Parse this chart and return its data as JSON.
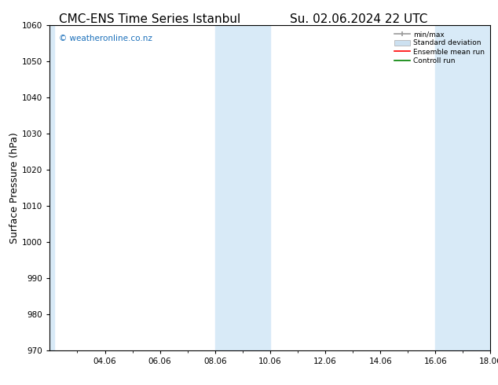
{
  "title_left": "CMC-ENS Time Series Istanbul",
  "title_right": "Su. 02.06.2024 22 UTC",
  "ylabel": "Surface Pressure (hPa)",
  "ylim": [
    970,
    1060
  ],
  "yticks": [
    970,
    980,
    990,
    1000,
    1010,
    1020,
    1030,
    1040,
    1050,
    1060
  ],
  "xtick_labels": [
    "04.06",
    "06.06",
    "08.06",
    "10.06",
    "12.06",
    "14.06",
    "16.06",
    "18.06"
  ],
  "xmin": 0.0,
  "xmax": 16.0,
  "xtick_positions": [
    2,
    4,
    6,
    8,
    10,
    12,
    14,
    16
  ],
  "shade_regions": [
    {
      "xstart": 6.0,
      "xend": 8.0
    },
    {
      "xstart": 14.0,
      "xend": 16.0
    }
  ],
  "left_shade": {
    "xstart": 0.0,
    "xend": 0.15
  },
  "shade_color": "#d8eaf7",
  "watermark": "© weatheronline.co.nz",
  "watermark_color": "#1a6fba",
  "legend_items": [
    {
      "label": "min/max",
      "color": "#aaaaaa"
    },
    {
      "label": "Standard deviation",
      "color": "#cce0f0"
    },
    {
      "label": "Ensemble mean run",
      "color": "red"
    },
    {
      "label": "Controll run",
      "color": "green"
    }
  ],
  "bg_color": "#ffffff",
  "title_fontsize": 11,
  "tick_fontsize": 7.5,
  "label_fontsize": 9
}
